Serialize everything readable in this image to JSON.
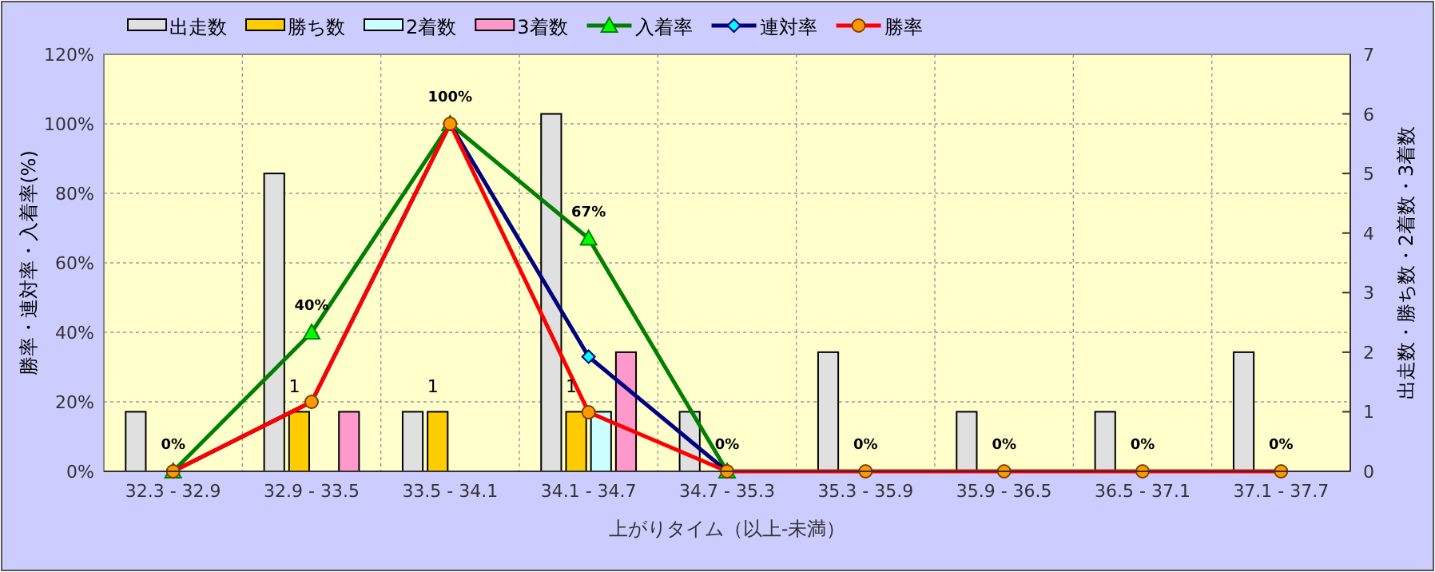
{
  "chart_data": {
    "type": "bar",
    "xlabel": "上がりタイム（以上-未満）",
    "ylabel": "勝率・連対率・入着率(%)",
    "y2label": "出走数・勝ち数・2着数・3着数",
    "categories": [
      "32.3 - 32.9",
      "32.9 - 33.5",
      "33.5 - 34.1",
      "34.1 - 34.7",
      "34.7 - 35.3",
      "35.3 - 35.9",
      "35.9 - 36.5",
      "36.5 - 37.1",
      "37.1 - 37.7"
    ],
    "series": [
      {
        "name": "出走数",
        "axis": "y2",
        "color": "#e0e0e0",
        "values": [
          1,
          5,
          1,
          6,
          1,
          2,
          1,
          1,
          2
        ]
      },
      {
        "name": "勝ち数",
        "axis": "y2",
        "color": "#ffcc00",
        "values": [
          0,
          1,
          1,
          1,
          0,
          0,
          0,
          0,
          0
        ],
        "value_labels": [
          null,
          "1",
          "1",
          "1",
          null,
          null,
          null,
          null,
          null
        ]
      },
      {
        "name": "2着数",
        "axis": "y2",
        "color": "#ccffff",
        "values": [
          0,
          0,
          0,
          1,
          0,
          0,
          0,
          0,
          0
        ]
      },
      {
        "name": "3着数",
        "axis": "y2",
        "color": "#ff99cc",
        "values": [
          0,
          1,
          0,
          2,
          0,
          0,
          0,
          0,
          0
        ]
      },
      {
        "name": "入着率",
        "type": "line",
        "axis": "y",
        "color": "#008000",
        "marker": "triangle",
        "values": [
          0,
          40,
          100,
          67,
          0,
          null,
          null,
          null,
          null
        ],
        "value_labels": [
          "0%",
          "40%",
          "100%",
          "67%",
          "0%",
          null,
          null,
          null,
          null
        ]
      },
      {
        "name": "連対率",
        "type": "line",
        "axis": "y",
        "color": "#000080",
        "marker": "diamond",
        "values": [
          0,
          20,
          100,
          33,
          0,
          null,
          null,
          null,
          null
        ]
      },
      {
        "name": "勝率",
        "type": "line",
        "axis": "y",
        "color": "#ff0000",
        "marker": "circle",
        "values": [
          0,
          20,
          100,
          17,
          0,
          0,
          0,
          0,
          0
        ],
        "value_labels": [
          null,
          null,
          null,
          null,
          null,
          "0%",
          "0%",
          "0%",
          "0%"
        ]
      }
    ],
    "ylim": [
      0,
      120
    ],
    "yticks": [
      {
        "value": 0,
        "label": "0%"
      },
      {
        "value": 20,
        "label": "20%"
      },
      {
        "value": 40,
        "label": "40%"
      },
      {
        "value": 60,
        "label": "60%"
      },
      {
        "value": 80,
        "label": "80%"
      },
      {
        "value": 100,
        "label": "100%"
      },
      {
        "value": 120,
        "label": "120%"
      }
    ],
    "y2lim": [
      0,
      7
    ],
    "y2ticks": [
      0,
      1,
      2,
      3,
      4,
      5,
      6,
      7
    ],
    "grid": true,
    "legend": "top"
  }
}
